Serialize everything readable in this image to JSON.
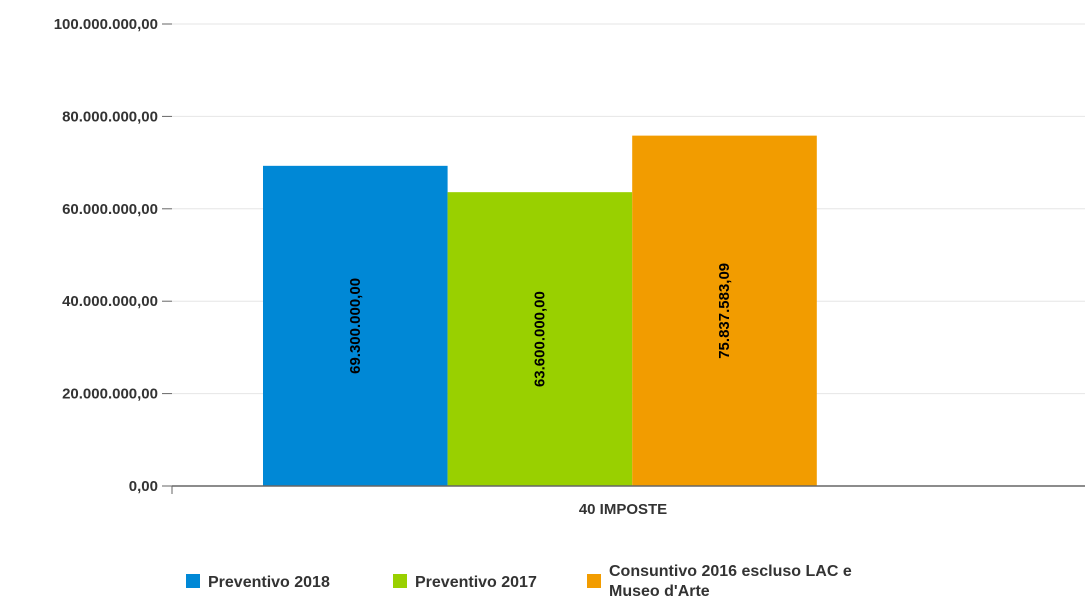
{
  "chart_data": {
    "type": "bar",
    "categories": [
      "40 IMPOSTE"
    ],
    "series": [
      {
        "name": "Preventivo 2018",
        "values": [
          69300000.0
        ],
        "label": "69.300.000,00",
        "color": "#0088d6"
      },
      {
        "name": "Preventivo 2017",
        "values": [
          63600000.0
        ],
        "label": "63.600.000,00",
        "color": "#99d000"
      },
      {
        "name": "Consuntivo 2016 escluso LAC e Museo d'Arte",
        "label": "75.837.583,09",
        "values": [
          75837583.09
        ],
        "color": "#f29c00",
        "legend_lines": [
          "Consuntivo 2016 escluso LAC e",
          "Museo d'Arte"
        ]
      }
    ],
    "ylim": [
      0,
      100000000
    ],
    "yticks": [
      {
        "value": 0,
        "label": "0,00"
      },
      {
        "value": 20000000,
        "label": "20.000.000,00"
      },
      {
        "value": 40000000,
        "label": "40.000.000,00"
      },
      {
        "value": 60000000,
        "label": "60.000.000,00"
      },
      {
        "value": 80000000,
        "label": "80.000.000,00"
      },
      {
        "value": 100000000,
        "label": "100.000.000,00"
      }
    ],
    "grid": true,
    "legend_position": "bottom-left",
    "data_labels": "inside-rotated"
  }
}
